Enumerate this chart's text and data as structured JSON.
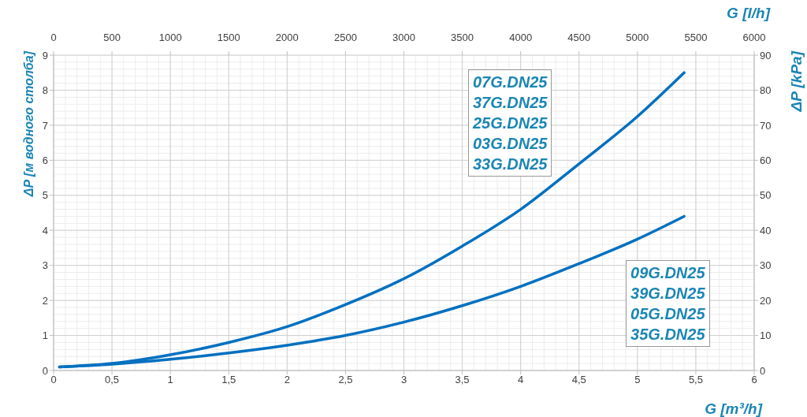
{
  "chart_data": {
    "type": "line",
    "xlabel": "G [m³/h]",
    "ylabel": "ΔP [м водного столба]",
    "x2label": "G [l/h]",
    "y2label": "ΔP [kPa]",
    "xlim": [
      0,
      6
    ],
    "xticks": [
      0,
      {
        "value": 0.5,
        "label": "0,5"
      },
      1,
      {
        "value": 1.5,
        "label": "1,5"
      },
      2,
      {
        "value": 2.5,
        "label": "2,5"
      },
      3,
      {
        "value": 3.5,
        "label": "3,5"
      },
      4,
      {
        "value": 4.5,
        "label": "4,5"
      },
      5,
      {
        "value": 5.5,
        "label": "5,5"
      },
      6
    ],
    "x2lim": [
      0,
      6000
    ],
    "x2ticks": [
      0,
      500,
      1000,
      1500,
      2000,
      2500,
      3000,
      3500,
      4000,
      4500,
      5000,
      5500,
      6000
    ],
    "ylim": [
      0,
      9
    ],
    "yticks": [
      0,
      1,
      2,
      3,
      4,
      5,
      6,
      7,
      8,
      9
    ],
    "y2lim": [
      0,
      90
    ],
    "y2ticks": [
      0,
      10,
      20,
      30,
      40,
      50,
      60,
      70,
      80,
      90
    ],
    "grid": true,
    "marker": "none",
    "line_style": "solid",
    "x": [
      0.05,
      0.5,
      1,
      1.5,
      2,
      2.5,
      3,
      3.5,
      4,
      4.5,
      5,
      5.4
    ],
    "series": [
      {
        "name": "07G.DN25\n37G.DN25\n25G.DN25\n03G.DN25\n33G.DN25",
        "color": "#0070c0",
        "values": [
          0.1,
          0.2,
          0.45,
          0.8,
          1.25,
          1.88,
          2.62,
          3.55,
          4.6,
          5.9,
          7.25,
          8.5
        ]
      },
      {
        "name": "09G.DN25\n39G.DN25\n05G.DN25\n35G.DN25",
        "color": "#0070c0",
        "values": [
          0.1,
          0.18,
          0.32,
          0.5,
          0.72,
          1.0,
          1.38,
          1.85,
          2.4,
          3.05,
          3.75,
          4.4
        ]
      }
    ]
  }
}
